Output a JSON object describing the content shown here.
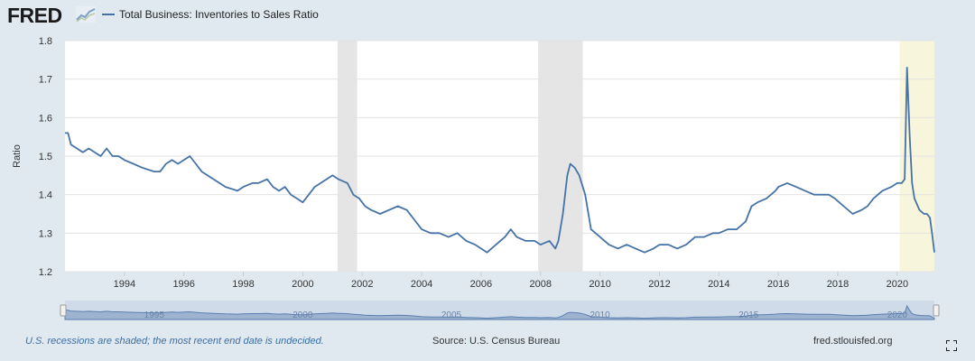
{
  "header": {
    "logo_text": "FRED",
    "series_name": "Total Business: Inventories to Sales Ratio"
  },
  "colors": {
    "line": "#4572a7",
    "recession_shade": "#e5e5e5",
    "undecided_shade": "#f7f5dc",
    "grid": "#e3e3e3",
    "plot_background": "#ffffff",
    "page_background": "#e1e9f0"
  },
  "chart_data": {
    "type": "line",
    "title": "",
    "xlabel": "",
    "ylabel": "Ratio",
    "ylim": [
      1.2,
      1.8
    ],
    "yticks": [
      1.2,
      1.3,
      1.4,
      1.5,
      1.6,
      1.7,
      1.8
    ],
    "xlim": [
      1992.0,
      2021.25
    ],
    "xticks": [
      1994,
      1996,
      1998,
      2000,
      2002,
      2004,
      2006,
      2008,
      2010,
      2012,
      2014,
      2016,
      2018,
      2020
    ],
    "grid": true,
    "recessions": [
      {
        "start": 2001.17,
        "end": 2001.83,
        "label": "2001 recession"
      },
      {
        "start": 2007.92,
        "end": 2009.42,
        "label": "2008 recession"
      }
    ],
    "undecided_recession": {
      "start": 2020.08,
      "end": 2021.25,
      "label": "2020 recession (end undecided)"
    },
    "series": [
      {
        "name": "Total Business: Inventories to Sales Ratio",
        "x": [
          1992.0,
          1992.1,
          1992.2,
          1992.4,
          1992.6,
          1992.8,
          1993.0,
          1993.2,
          1993.4,
          1993.6,
          1993.8,
          1994.0,
          1994.3,
          1994.6,
          1995.0,
          1995.2,
          1995.4,
          1995.6,
          1995.8,
          1996.0,
          1996.2,
          1996.4,
          1996.6,
          1997.0,
          1997.4,
          1997.8,
          1998.0,
          1998.3,
          1998.5,
          1998.8,
          1999.0,
          1999.2,
          1999.4,
          1999.6,
          1999.8,
          2000.0,
          2000.2,
          2000.4,
          2000.6,
          2000.8,
          2001.0,
          2001.2,
          2001.5,
          2001.7,
          2001.9,
          2002.1,
          2002.3,
          2002.6,
          2002.9,
          2003.2,
          2003.5,
          2003.8,
          2004.0,
          2004.3,
          2004.6,
          2004.9,
          2005.2,
          2005.5,
          2005.8,
          2006.0,
          2006.2,
          2006.5,
          2006.8,
          2007.0,
          2007.2,
          2007.5,
          2007.8,
          2008.0,
          2008.3,
          2008.5,
          2008.6,
          2008.75,
          2008.9,
          2009.0,
          2009.15,
          2009.3,
          2009.5,
          2009.7,
          2010.0,
          2010.3,
          2010.6,
          2010.9,
          2011.2,
          2011.5,
          2011.8,
          2012.0,
          2012.3,
          2012.6,
          2012.9,
          2013.2,
          2013.5,
          2013.8,
          2014.0,
          2014.3,
          2014.6,
          2014.9,
          2015.1,
          2015.3,
          2015.6,
          2015.9,
          2016.0,
          2016.3,
          2016.6,
          2016.9,
          2017.2,
          2017.5,
          2017.7,
          2017.9,
          2018.2,
          2018.5,
          2018.8,
          2019.0,
          2019.2,
          2019.5,
          2019.8,
          2020.0,
          2020.15,
          2020.25,
          2020.33,
          2020.42,
          2020.5,
          2020.58,
          2020.75,
          2020.9,
          2021.0,
          2021.1,
          2021.17,
          2021.25
        ],
        "y": [
          1.56,
          1.56,
          1.53,
          1.52,
          1.51,
          1.52,
          1.51,
          1.5,
          1.52,
          1.5,
          1.5,
          1.49,
          1.48,
          1.47,
          1.46,
          1.46,
          1.48,
          1.49,
          1.48,
          1.49,
          1.5,
          1.48,
          1.46,
          1.44,
          1.42,
          1.41,
          1.42,
          1.43,
          1.43,
          1.44,
          1.42,
          1.41,
          1.42,
          1.4,
          1.39,
          1.38,
          1.4,
          1.42,
          1.43,
          1.44,
          1.45,
          1.44,
          1.43,
          1.4,
          1.39,
          1.37,
          1.36,
          1.35,
          1.36,
          1.37,
          1.36,
          1.33,
          1.31,
          1.3,
          1.3,
          1.29,
          1.3,
          1.28,
          1.27,
          1.26,
          1.25,
          1.27,
          1.29,
          1.31,
          1.29,
          1.28,
          1.28,
          1.27,
          1.28,
          1.26,
          1.28,
          1.35,
          1.45,
          1.48,
          1.47,
          1.45,
          1.4,
          1.31,
          1.29,
          1.27,
          1.26,
          1.27,
          1.26,
          1.25,
          1.26,
          1.27,
          1.27,
          1.26,
          1.27,
          1.29,
          1.29,
          1.3,
          1.3,
          1.31,
          1.31,
          1.33,
          1.37,
          1.38,
          1.39,
          1.41,
          1.42,
          1.43,
          1.42,
          1.41,
          1.4,
          1.4,
          1.4,
          1.39,
          1.37,
          1.35,
          1.36,
          1.37,
          1.39,
          1.41,
          1.42,
          1.43,
          1.43,
          1.44,
          1.73,
          1.55,
          1.43,
          1.39,
          1.36,
          1.35,
          1.35,
          1.34,
          1.3,
          1.25
        ]
      }
    ]
  },
  "navigator": {
    "labels": [
      "1995",
      "2000",
      "2005",
      "2010",
      "2015",
      "2020"
    ]
  },
  "footer": {
    "note": "U.S. recessions are shaded; the most recent end date is undecided.",
    "source": "Source: U.S. Census Bureau",
    "url": "fred.stlouisfed.org"
  }
}
